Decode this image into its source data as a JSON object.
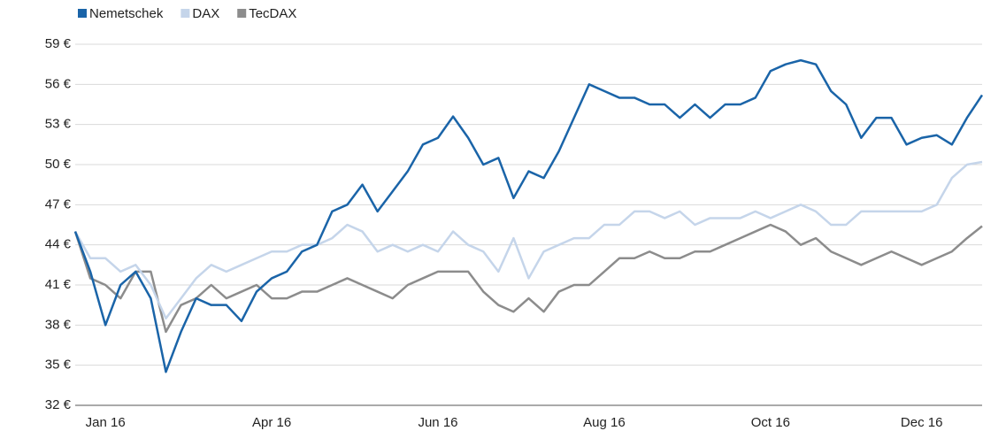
{
  "chart_data": {
    "type": "line",
    "categories": [
      null,
      null,
      "Jan 16",
      null,
      null,
      null,
      null,
      null,
      null,
      null,
      null,
      null,
      null,
      "Apr 16",
      null,
      null,
      null,
      null,
      null,
      null,
      null,
      null,
      null,
      null,
      "Jun 16",
      null,
      null,
      null,
      null,
      null,
      null,
      null,
      null,
      null,
      null,
      "Aug 16",
      null,
      null,
      null,
      null,
      null,
      null,
      null,
      null,
      null,
      null,
      "Oct 16",
      null,
      null,
      null,
      null,
      null,
      null,
      null,
      null,
      null,
      "Dec 16",
      null,
      null,
      null,
      null
    ],
    "series": [
      {
        "name": "Nemetschek",
        "color": "#1a64a8",
        "values": [
          45,
          42,
          38,
          41,
          42,
          40,
          34.5,
          37.5,
          40,
          39.5,
          39.5,
          38.3,
          40.5,
          41.5,
          42,
          43.5,
          44,
          46.5,
          47,
          48.5,
          46.5,
          48,
          49.5,
          51.5,
          52,
          53.6,
          52,
          50,
          50.5,
          47.5,
          49.5,
          49,
          51,
          53.5,
          56,
          55.5,
          55,
          55,
          54.5,
          54.5,
          53.5,
          54.5,
          53.5,
          54.5,
          54.5,
          55,
          57,
          57.5,
          57.8,
          57.5,
          55.5,
          54.5,
          52,
          53.5,
          53.5,
          51.5,
          52,
          52.2,
          51.5,
          53.5,
          55.2
        ]
      },
      {
        "name": "DAX",
        "color": "#c5d5ea",
        "values": [
          45,
          43,
          43,
          42,
          42.5,
          41,
          38.5,
          40,
          41.5,
          42.5,
          42,
          42.5,
          43,
          43.5,
          43.5,
          44,
          44,
          44.5,
          45.5,
          45,
          43.5,
          44,
          43.5,
          44,
          43.5,
          45,
          44,
          43.5,
          42,
          44.5,
          41.5,
          43.5,
          44,
          44.5,
          44.5,
          45.5,
          45.5,
          46.5,
          46.5,
          46,
          46.5,
          45.5,
          46,
          46,
          46,
          46.5,
          46,
          46.5,
          47,
          46.5,
          45.5,
          45.5,
          46.5,
          46.5,
          46.5,
          46.5,
          46.5,
          47,
          49,
          50,
          50.2
        ]
      },
      {
        "name": "TecDAX",
        "color": "#8c8c8c",
        "values": [
          45,
          41.5,
          41,
          40,
          42,
          42,
          37.5,
          39.5,
          40,
          41,
          40,
          40.5,
          41,
          40,
          40,
          40.5,
          40.5,
          41,
          41.5,
          41,
          40.5,
          40,
          41,
          41.5,
          42,
          42,
          42,
          40.5,
          39.5,
          39,
          40,
          39,
          40.5,
          41,
          41,
          42,
          43,
          43,
          43.5,
          43,
          43,
          43.5,
          43.5,
          44,
          44.5,
          45,
          45.5,
          45,
          44,
          44.5,
          43.5,
          43,
          42.5,
          43,
          43.5,
          43,
          42.5,
          43,
          43.5,
          44.5,
          45.4
        ]
      }
    ],
    "ylim": [
      32,
      59
    ],
    "yticks": [
      {
        "value": 32,
        "label": "32 €"
      },
      {
        "value": 35,
        "label": "35 €"
      },
      {
        "value": 38,
        "label": "38 €"
      },
      {
        "value": 41,
        "label": "41 €"
      },
      {
        "value": 44,
        "label": "44 €"
      },
      {
        "value": 47,
        "label": "47 €"
      },
      {
        "value": 50,
        "label": "50 €"
      },
      {
        "value": 53,
        "label": "53 €"
      },
      {
        "value": 56,
        "label": "56 €"
      },
      {
        "value": 59,
        "label": "59 €"
      }
    ],
    "grid": true,
    "legend": "top-left"
  }
}
